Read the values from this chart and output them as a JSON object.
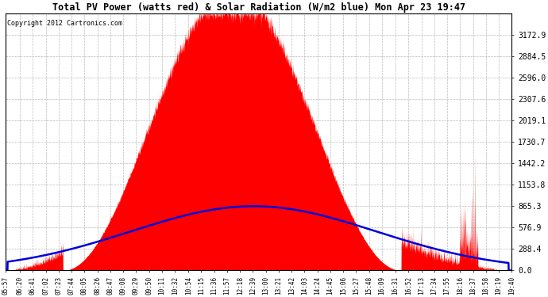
{
  "title": "Total PV Power (watts red) & Solar Radiation (W/m2 blue) Mon Apr 23 19:47",
  "copyright": "Copyright 2012 Cartronics.com",
  "bg_color": "#ffffff",
  "grid_color": "#bbbbbb",
  "fill_color": "#ff0000",
  "line_color": "#0000dd",
  "ymin": 0.0,
  "ymax": 3461.3,
  "ytick_step": 288.45,
  "solar_peak": 865.3,
  "x_tick_labels": [
    "05:57",
    "06:20",
    "06:41",
    "07:02",
    "07:23",
    "07:44",
    "08:05",
    "08:26",
    "08:47",
    "09:08",
    "09:29",
    "09:50",
    "10:11",
    "10:32",
    "10:54",
    "11:15",
    "11:36",
    "11:57",
    "12:18",
    "12:39",
    "13:00",
    "13:21",
    "13:42",
    "14:03",
    "14:24",
    "14:45",
    "15:06",
    "15:27",
    "15:48",
    "16:09",
    "16:31",
    "16:52",
    "17:13",
    "17:34",
    "17:55",
    "18:16",
    "18:37",
    "18:58",
    "19:19",
    "19:40"
  ]
}
